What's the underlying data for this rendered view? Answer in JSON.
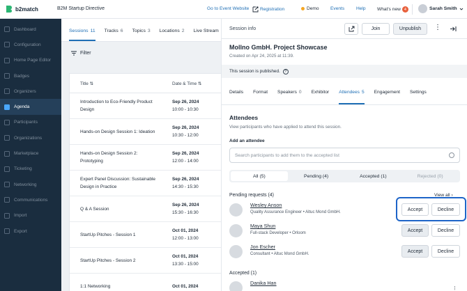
{
  "header": {
    "logo": "b2match",
    "event": "B2M Startup Directive",
    "nav": {
      "go_to_event": "Go to Event Website",
      "registration": "Registration",
      "demo": "Demo",
      "events": "Events",
      "help": "Help",
      "whats_new": "What's new",
      "whats_new_count": "4"
    },
    "user": "Sarah Smith"
  },
  "sidebar": {
    "items": [
      {
        "label": "Dashboard",
        "icon": "dashboard-icon"
      },
      {
        "label": "Configuration",
        "icon": "configuration-icon"
      },
      {
        "label": "Home Page Editor",
        "icon": "home-editor-icon"
      },
      {
        "label": "Badges",
        "icon": "badge-icon"
      },
      {
        "label": "Organizers",
        "icon": "organizers-icon"
      },
      {
        "label": "Agenda",
        "icon": "agenda-icon",
        "active": true
      },
      {
        "label": "Participants",
        "icon": "participants-icon"
      },
      {
        "label": "Organizations",
        "icon": "organizations-icon"
      },
      {
        "label": "Marketplace",
        "icon": "marketplace-icon"
      },
      {
        "label": "Ticketing",
        "icon": "ticketing-icon"
      },
      {
        "label": "Networking",
        "icon": "networking-icon"
      },
      {
        "label": "Communications",
        "icon": "communications-icon"
      },
      {
        "label": "Import",
        "icon": "import-icon"
      },
      {
        "label": "Export",
        "icon": "export-icon"
      }
    ]
  },
  "agenda": {
    "tabs": [
      {
        "label": "Sessions",
        "count": "11"
      },
      {
        "label": "Tracks",
        "count": "6"
      },
      {
        "label": "Topics",
        "count": "3"
      },
      {
        "label": "Locations",
        "count": "2"
      },
      {
        "label": "Live Stream",
        "count": ""
      }
    ],
    "filter": "Filter",
    "columns": {
      "title": "Title",
      "date": "Date & Time"
    },
    "rows": [
      {
        "title": "Introduction to Eco-Friendly Product Design",
        "date": "Sep 26, 2024",
        "time": "10:00 - 10:30"
      },
      {
        "title": "Hands-on Design Session 1: Ideation",
        "date": "Sep 26, 2024",
        "time": "10:30 - 12:00"
      },
      {
        "title": "Hands-on Design Session 2: Prototyping",
        "date": "Sep 26, 2024",
        "time": "12:00 - 14:00"
      },
      {
        "title": "Expert Panel Discussion: Sustainable Design in Practice",
        "date": "Sep 26, 2024",
        "time": "14:30 - 15:30"
      },
      {
        "title": "Q & A Session",
        "date": "Sep 26, 2024",
        "time": "15:30 - 16:30"
      },
      {
        "title": "StartUp Pitches - Session 1",
        "date": "Oct 01, 2024",
        "time": "12:00 - 13:00"
      },
      {
        "title": "StartUp Pitches - Session 2",
        "date": "Oct 01, 2024",
        "time": "13:30 - 15:00"
      },
      {
        "title": "1:1 Networking",
        "date": "Oct 01, 2024",
        "time": ""
      }
    ]
  },
  "session": {
    "panel_title": "Session info",
    "join": "Join",
    "unpublish": "Unpublish",
    "name": "Mollno GmbH. Project Showcase",
    "created": "Created on Apr 24, 2025 at 11:39.",
    "published": "This session is published.",
    "tabs": [
      {
        "label": "Details",
        "count": ""
      },
      {
        "label": "Format",
        "count": ""
      },
      {
        "label": "Speakers",
        "count": "0"
      },
      {
        "label": "Exhibitor",
        "count": ""
      },
      {
        "label": "Attendees",
        "count": "5",
        "active": true
      },
      {
        "label": "Engagement",
        "count": ""
      },
      {
        "label": "Settings",
        "count": ""
      }
    ],
    "attendees": {
      "heading": "Attendees",
      "description": "View participants who have applied to attend this session.",
      "add_label": "Add an attendee",
      "search_placeholder": "Search participants to add them to the accepted list",
      "segments": [
        "All (5)",
        "Pending (4)",
        "Accepted (1)",
        "Rejected (0)"
      ],
      "pending_heading": "Pending requests (4)",
      "view_all": "View all",
      "pending": [
        {
          "name": "Wesley Anson",
          "role": "Quality Assurance Engineer",
          "org": "Altuc Mond GmbH."
        },
        {
          "name": "Maya Shun",
          "role": "Full-stack Developer",
          "org": "Orloom"
        },
        {
          "name": "Jon Escher",
          "role": "Consultant",
          "org": "Altuc Mond GmbH."
        }
      ],
      "accept": "Accept",
      "decline": "Decline",
      "accepted_heading": "Accepted (1)",
      "accepted": [
        {
          "name": "Danika Han"
        }
      ]
    }
  }
}
